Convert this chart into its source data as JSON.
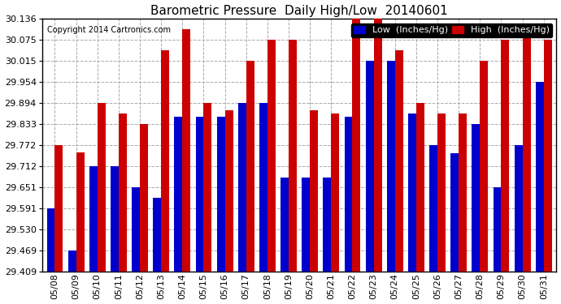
{
  "title": "Barometric Pressure  Daily High/Low  20140601",
  "copyright": "Copyright 2014 Cartronics.com",
  "legend_low": "Low  (Inches/Hg)",
  "legend_high": "High  (Inches/Hg)",
  "low_color": "#0000cc",
  "high_color": "#cc0000",
  "ymin": 29.409,
  "ymax": 30.136,
  "yticks": [
    29.409,
    29.469,
    29.53,
    29.591,
    29.651,
    29.712,
    29.772,
    29.833,
    29.894,
    29.954,
    30.015,
    30.075,
    30.136
  ],
  "dates": [
    "05/08",
    "05/09",
    "05/10",
    "05/11",
    "05/12",
    "05/13",
    "05/14",
    "05/15",
    "05/16",
    "05/17",
    "05/18",
    "05/19",
    "05/20",
    "05/21",
    "05/22",
    "05/23",
    "05/24",
    "05/25",
    "05/26",
    "05/27",
    "05/28",
    "05/29",
    "05/30",
    "05/31"
  ],
  "low_values": [
    29.591,
    29.469,
    29.712,
    29.712,
    29.651,
    29.62,
    29.854,
    29.854,
    29.854,
    29.893,
    29.893,
    29.68,
    29.68,
    29.68,
    29.854,
    30.015,
    30.015,
    29.863,
    29.772,
    29.75,
    29.833,
    29.651,
    29.772,
    29.954
  ],
  "high_values": [
    29.772,
    29.751,
    29.893,
    29.863,
    29.833,
    30.045,
    30.106,
    29.893,
    29.873,
    30.015,
    30.075,
    30.075,
    29.873,
    29.863,
    30.136,
    30.136,
    30.045,
    29.893,
    29.863,
    29.863,
    30.015,
    30.075,
    30.106,
    30.075
  ],
  "background_color": "#ffffff",
  "grid_color": "#aaaaaa",
  "title_fontsize": 11,
  "tick_fontsize": 8,
  "legend_fontsize": 8
}
